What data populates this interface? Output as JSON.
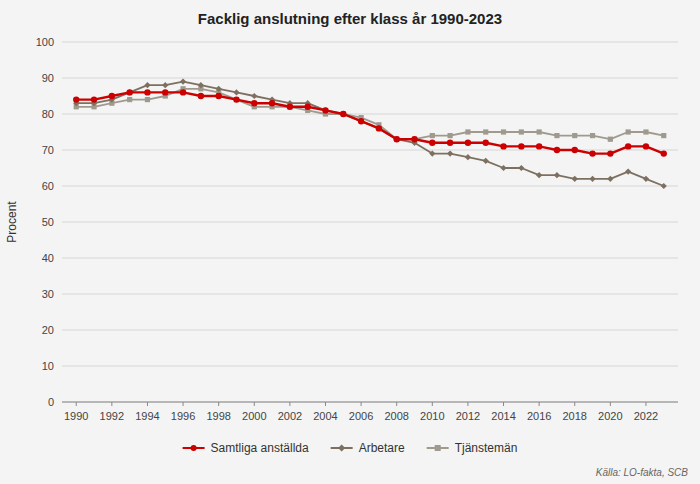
{
  "chart_data": {
    "type": "line",
    "title": "Facklig anslutning efter klass år 1990-2023",
    "ylabel": "Procent",
    "source": "Källa: LO-fakta, SCB",
    "x": [
      1990,
      1991,
      1992,
      1993,
      1994,
      1995,
      1996,
      1997,
      1998,
      1999,
      2000,
      2001,
      2002,
      2003,
      2004,
      2005,
      2006,
      2007,
      2008,
      2009,
      2010,
      2011,
      2012,
      2013,
      2014,
      2015,
      2016,
      2017,
      2018,
      2019,
      2020,
      2021,
      2022,
      2023
    ],
    "series": [
      {
        "name": "Samtliga anställda",
        "color": "#cc0000",
        "marker": "circle",
        "values": [
          84,
          84,
          85,
          86,
          86,
          86,
          86,
          85,
          85,
          84,
          83,
          83,
          82,
          82,
          81,
          80,
          78,
          76,
          73,
          73,
          72,
          72,
          72,
          72,
          71,
          71,
          71,
          70,
          70,
          69,
          69,
          71,
          71,
          69
        ]
      },
      {
        "name": "Arbetare",
        "color": "#7d7060",
        "marker": "diamond",
        "values": [
          83,
          83,
          84,
          86,
          88,
          88,
          89,
          88,
          87,
          86,
          85,
          84,
          83,
          83,
          81,
          80,
          78,
          76,
          73,
          72,
          69,
          69,
          68,
          67,
          65,
          65,
          63,
          63,
          62,
          62,
          62,
          64,
          62,
          60
        ]
      },
      {
        "name": "Tjänstemän",
        "color": "#a09a8e",
        "marker": "square",
        "values": [
          82,
          82,
          83,
          84,
          84,
          85,
          87,
          87,
          86,
          84,
          82,
          82,
          82,
          81,
          80,
          80,
          79,
          77,
          73,
          73,
          74,
          74,
          75,
          75,
          75,
          75,
          75,
          74,
          74,
          74,
          73,
          75,
          75,
          74
        ]
      }
    ],
    "xlim": [
      1989.2,
      2023.8
    ],
    "xticks": [
      1990,
      1992,
      1994,
      1996,
      1998,
      2000,
      2002,
      2004,
      2006,
      2008,
      2010,
      2012,
      2014,
      2016,
      2018,
      2020,
      2022
    ],
    "ylim": [
      0,
      100
    ],
    "yticks": [
      0,
      10,
      20,
      30,
      40,
      50,
      60,
      70,
      80,
      90,
      100
    ],
    "grid": "y",
    "legend": "bottom"
  }
}
